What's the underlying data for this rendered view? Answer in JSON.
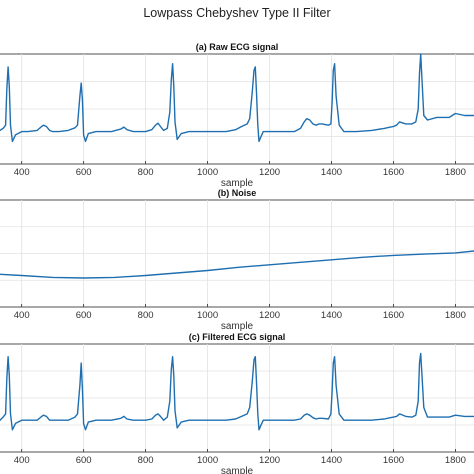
{
  "figure": {
    "title": "Lowpass Chebyshev Type II Filter"
  },
  "colors": {
    "signal": "#1f6fb0",
    "axes": "#262626",
    "grid": "#e2e2e2"
  },
  "chart_data": [
    {
      "type": "line",
      "title": "(a) Raw ECG signal",
      "xlabel": "sample",
      "ylabel": "",
      "xlim": [
        330,
        1860
      ],
      "ylim": [
        -0.5,
        1.2
      ],
      "xticks": [
        400,
        600,
        800,
        1000,
        1200,
        1400,
        1600,
        1800
      ],
      "grid": true,
      "series": [
        {
          "x": [
            330,
            340,
            348,
            352,
            356,
            360,
            364,
            370,
            380,
            400,
            420,
            450,
            462,
            470,
            480,
            490,
            500,
            520,
            550,
            572,
            580,
            588,
            592,
            596,
            600,
            606,
            615,
            640,
            660,
            690,
            720,
            730,
            740,
            760,
            780,
            800,
            820,
            832,
            840,
            848,
            858,
            870,
            878,
            883,
            887,
            891,
            895,
            902,
            915,
            940,
            980,
            1020,
            1060,
            1090,
            1110,
            1128,
            1136,
            1144,
            1150,
            1154,
            1158,
            1162,
            1166,
            1172,
            1180,
            1200,
            1240,
            1280,
            1300,
            1312,
            1320,
            1330,
            1340,
            1350,
            1360,
            1370,
            1390,
            1398,
            1402,
            1406,
            1410,
            1415,
            1425,
            1440,
            1480,
            1530,
            1570,
            1590,
            1600,
            1610,
            1620,
            1640,
            1660,
            1672,
            1680,
            1684,
            1688,
            1692,
            1698,
            1710,
            1740,
            1780,
            1800,
            1830,
            1860
          ],
          "y": [
            0.02,
            0.05,
            0.1,
            0.65,
            1.0,
            0.7,
            0.1,
            -0.15,
            -0.05,
            0.0,
            0.0,
            0.02,
            0.07,
            0.1,
            0.08,
            0.02,
            0.0,
            0.0,
            0.02,
            0.06,
            0.1,
            0.55,
            0.75,
            0.5,
            -0.05,
            -0.15,
            -0.03,
            0.0,
            0.0,
            0.0,
            0.04,
            0.07,
            0.03,
            0.0,
            0.0,
            0.0,
            0.03,
            0.1,
            0.13,
            0.08,
            0.02,
            0.05,
            0.3,
            0.8,
            1.05,
            0.7,
            0.15,
            -0.12,
            -0.03,
            0.0,
            0.0,
            0.0,
            0.0,
            0.03,
            0.08,
            0.12,
            0.2,
            0.6,
            0.95,
            1.0,
            0.6,
            0.1,
            -0.15,
            -0.08,
            0.0,
            0.0,
            0.0,
            0.0,
            0.05,
            0.15,
            0.2,
            0.18,
            0.12,
            0.1,
            0.12,
            0.12,
            0.1,
            0.12,
            0.45,
            0.95,
            1.05,
            0.55,
            0.1,
            0.0,
            0.0,
            0.02,
            0.05,
            0.07,
            0.08,
            0.1,
            0.15,
            0.12,
            0.12,
            0.15,
            0.35,
            0.9,
            1.2,
            0.8,
            0.25,
            0.18,
            0.22,
            0.22,
            0.28,
            0.25,
            0.25
          ]
        }
      ]
    },
    {
      "type": "line",
      "title": "(b) Noise",
      "xlabel": "sample",
      "ylabel": "",
      "xlim": [
        330,
        1860
      ],
      "ylim": [
        -0.5,
        1.2
      ],
      "xticks": [
        400,
        600,
        800,
        1000,
        1200,
        1400,
        1600,
        1800
      ],
      "grid": true,
      "series": [
        {
          "x": [
            330,
            400,
            500,
            600,
            700,
            800,
            900,
            1000,
            1100,
            1200,
            1300,
            1400,
            1500,
            1600,
            1700,
            1800,
            1860
          ],
          "y": [
            0.02,
            0.0,
            -0.03,
            -0.04,
            -0.03,
            0.0,
            0.04,
            0.08,
            0.13,
            0.17,
            0.21,
            0.25,
            0.29,
            0.32,
            0.34,
            0.36,
            0.39
          ]
        }
      ]
    },
    {
      "type": "line",
      "title": "(c) Filtered ECG signal",
      "xlabel": "sample",
      "ylabel": "",
      "xlim": [
        330,
        1860
      ],
      "ylim": [
        -0.5,
        1.2
      ],
      "xticks": [
        400,
        600,
        800,
        1000,
        1200,
        1400,
        1600,
        1800
      ],
      "grid": true,
      "series": [
        {
          "x": [
            330,
            340,
            348,
            352,
            356,
            360,
            364,
            370,
            380,
            400,
            420,
            450,
            462,
            470,
            480,
            490,
            500,
            520,
            550,
            572,
            580,
            588,
            592,
            596,
            600,
            606,
            615,
            640,
            660,
            690,
            720,
            730,
            740,
            760,
            780,
            800,
            820,
            832,
            840,
            848,
            858,
            870,
            878,
            883,
            887,
            891,
            895,
            902,
            915,
            940,
            980,
            1020,
            1060,
            1090,
            1110,
            1128,
            1136,
            1144,
            1150,
            1154,
            1158,
            1162,
            1166,
            1172,
            1180,
            1200,
            1240,
            1280,
            1300,
            1312,
            1320,
            1330,
            1340,
            1350,
            1360,
            1370,
            1390,
            1398,
            1402,
            1406,
            1410,
            1415,
            1425,
            1440,
            1480,
            1530,
            1570,
            1590,
            1600,
            1610,
            1620,
            1640,
            1660,
            1672,
            1680,
            1684,
            1688,
            1692,
            1698,
            1710,
            1740,
            1780,
            1800,
            1830,
            1860
          ],
          "y": [
            0.0,
            0.05,
            0.1,
            0.65,
            1.0,
            0.7,
            0.1,
            -0.15,
            -0.05,
            0.0,
            0.0,
            0.0,
            0.05,
            0.08,
            0.06,
            0.0,
            0.0,
            0.0,
            0.0,
            0.05,
            0.1,
            0.55,
            0.9,
            0.5,
            -0.05,
            -0.15,
            -0.03,
            0.0,
            0.0,
            0.0,
            0.03,
            0.06,
            0.02,
            0.0,
            0.0,
            0.0,
            0.02,
            0.08,
            0.1,
            0.06,
            0.0,
            0.05,
            0.3,
            0.8,
            1.0,
            0.7,
            0.15,
            -0.12,
            -0.03,
            0.0,
            0.0,
            0.0,
            0.0,
            0.02,
            0.06,
            0.1,
            0.2,
            0.6,
            0.95,
            1.0,
            0.6,
            0.1,
            -0.15,
            -0.08,
            0.0,
            0.0,
            0.0,
            0.0,
            0.02,
            0.08,
            0.1,
            0.08,
            0.04,
            0.02,
            0.03,
            0.03,
            0.02,
            0.1,
            0.45,
            0.9,
            1.0,
            0.55,
            0.1,
            0.0,
            0.0,
            0.0,
            0.02,
            0.04,
            0.05,
            0.06,
            0.1,
            0.06,
            0.05,
            0.08,
            0.3,
            0.9,
            1.05,
            0.7,
            0.2,
            0.05,
            0.05,
            0.05,
            0.08,
            0.06,
            0.06
          ]
        }
      ]
    }
  ]
}
